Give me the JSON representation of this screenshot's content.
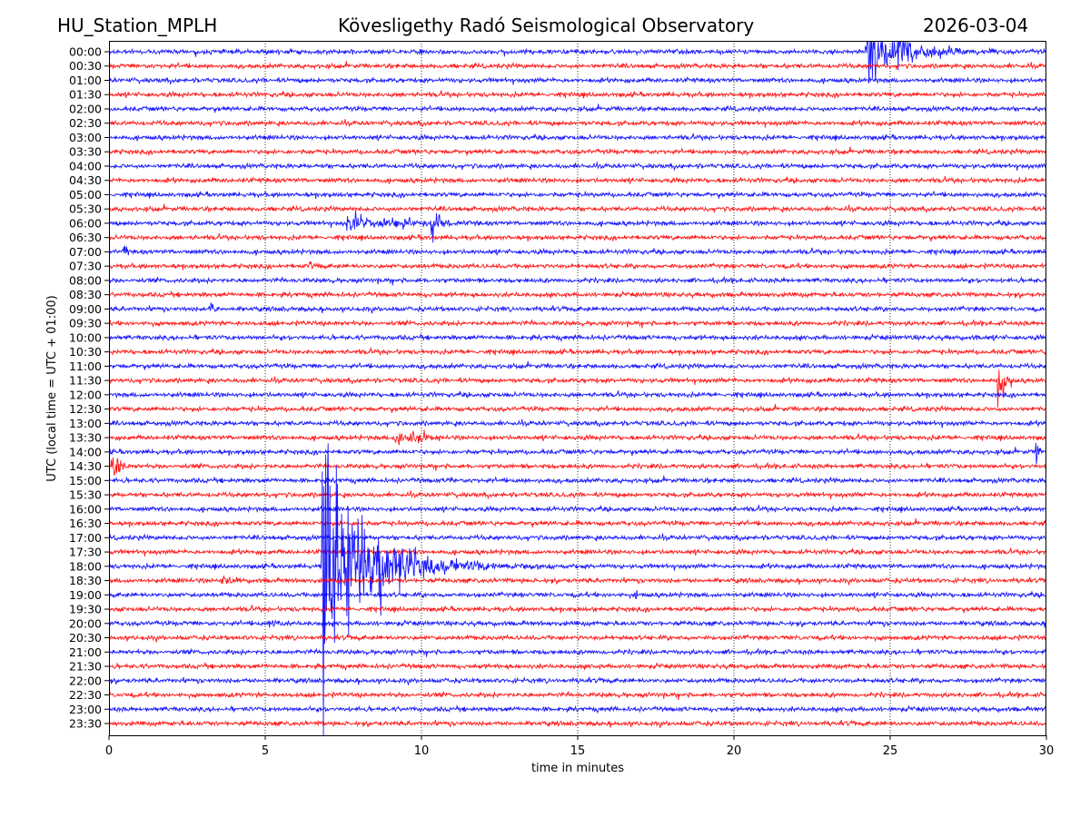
{
  "header": {
    "station": "HU_Station_MPLH",
    "title": "Kövesligethy Radó Seismological Observatory",
    "date": "2026-03-04"
  },
  "chart_data": {
    "type": "line",
    "title": "Kövesligethy Radó Seismological Observatory",
    "xlabel": "time in minutes",
    "ylabel": "UTC (local time = UTC + 01:00)",
    "xlim": [
      0,
      30
    ],
    "xticks": [
      "0",
      "5",
      "10",
      "15",
      "20",
      "25",
      "30"
    ],
    "grid": "vertical dotted at x ticks",
    "colors": [
      "#0000ff",
      "#ff0000"
    ],
    "rows": [
      "00:00",
      "00:30",
      "01:00",
      "01:30",
      "02:00",
      "02:30",
      "03:00",
      "03:30",
      "04:00",
      "04:30",
      "05:00",
      "05:30",
      "06:00",
      "06:30",
      "07:00",
      "07:30",
      "08:00",
      "08:30",
      "09:00",
      "09:30",
      "10:00",
      "10:30",
      "11:00",
      "11:30",
      "12:00",
      "12:30",
      "13:00",
      "13:30",
      "14:00",
      "14:30",
      "15:00",
      "15:30",
      "16:00",
      "16:30",
      "17:00",
      "17:30",
      "18:00",
      "18:30",
      "19:00",
      "19:30",
      "20:00",
      "20:30",
      "21:00",
      "21:30",
      "22:00",
      "22:30",
      "23:00",
      "23:30"
    ],
    "noise_level": 1,
    "events": [
      {
        "row": 0,
        "start": 24.2,
        "end": 28.5,
        "amp": 14,
        "tau": 1.0
      },
      {
        "row": 0,
        "start": 25.2,
        "end": 25.8,
        "amp": 20,
        "tau": 0.3
      },
      {
        "row": 12,
        "start": 7.6,
        "end": 12.0,
        "amp": 4,
        "tau": 1.2
      },
      {
        "row": 12,
        "start": 10.3,
        "end": 11.0,
        "amp": 13,
        "tau": 0.15
      },
      {
        "row": 14,
        "start": 0.45,
        "end": 0.7,
        "amp": 5,
        "tau": 0.08
      },
      {
        "row": 15,
        "start": 6.4,
        "end": 6.8,
        "amp": 2,
        "tau": 0.2
      },
      {
        "row": 18,
        "start": 3.2,
        "end": 3.5,
        "amp": 6,
        "tau": 0.08
      },
      {
        "row": 20,
        "start": 27.7,
        "end": 27.9,
        "amp": 2.5,
        "tau": 0.05
      },
      {
        "row": 23,
        "start": 28.4,
        "end": 29.0,
        "amp": 7,
        "tau": 0.3
      },
      {
        "row": 27,
        "start": 9.1,
        "end": 10.6,
        "amp": 3,
        "tau": 0.8
      },
      {
        "row": 28,
        "start": 29.65,
        "end": 29.85,
        "amp": 20,
        "tau": 0.05
      },
      {
        "row": 29,
        "start": 0.05,
        "end": 0.6,
        "amp": 5,
        "tau": 0.3
      },
      {
        "row": 30,
        "start": 10.8,
        "end": 11.1,
        "amp": 2,
        "tau": 0.1
      },
      {
        "row": 36,
        "start": 6.85,
        "end": 7.0,
        "amp": 110,
        "tau": 0.04
      },
      {
        "row": 36,
        "start": 6.8,
        "end": 15.0,
        "amp": 45,
        "tau": 1.4
      },
      {
        "row": 37,
        "start": 3.6,
        "end": 4.2,
        "amp": 2,
        "tau": 0.3
      },
      {
        "row": 38,
        "start": 16.8,
        "end": 17.1,
        "amp": 2,
        "tau": 0.1
      },
      {
        "row": 40,
        "start": 5.1,
        "end": 5.6,
        "amp": 2,
        "tau": 0.3
      }
    ]
  }
}
